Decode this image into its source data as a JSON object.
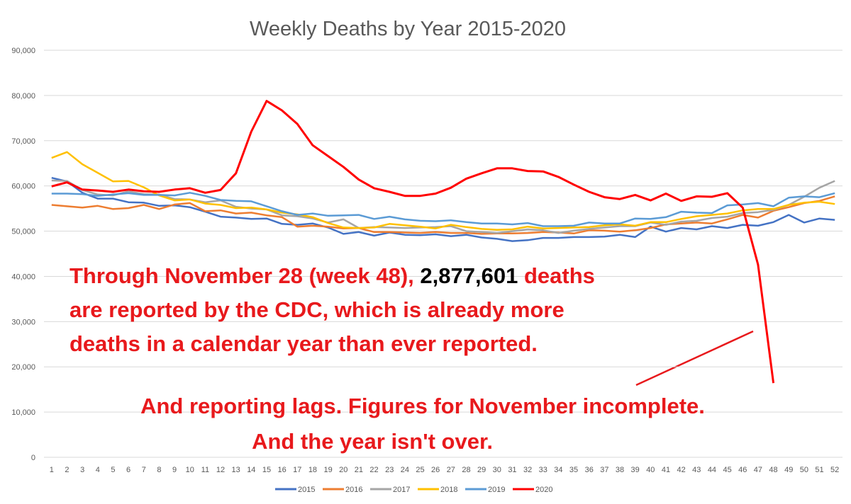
{
  "chart_data": {
    "type": "line",
    "title": "Weekly Deaths by Year 2015-2020",
    "categories": [
      1,
      2,
      3,
      4,
      5,
      6,
      7,
      8,
      9,
      10,
      11,
      12,
      13,
      14,
      15,
      16,
      17,
      18,
      19,
      20,
      21,
      22,
      23,
      24,
      25,
      26,
      27,
      28,
      29,
      30,
      31,
      32,
      33,
      34,
      35,
      36,
      37,
      38,
      39,
      40,
      41,
      42,
      43,
      44,
      45,
      46,
      47,
      48,
      49,
      50,
      51,
      52
    ],
    "ylim": [
      0,
      90000
    ],
    "yticks": [
      0,
      {
        "value": 10000,
        "label": "10,000"
      },
      {
        "value": 20000,
        "label": "20,000"
      },
      {
        "value": 30000,
        "label": "30,000"
      },
      {
        "value": 40000,
        "label": "40,000"
      },
      {
        "value": 50000,
        "label": "50,000"
      },
      {
        "value": 60000,
        "label": "60,000"
      },
      {
        "value": 70000,
        "label": "70,000"
      },
      {
        "value": 80000,
        "label": "80,000"
      },
      {
        "value": 90000,
        "label": "90,000"
      }
    ],
    "grid": true,
    "legend": "bottom",
    "series": [
      {
        "name": "2015",
        "color": "#4472c4",
        "values": [
          61800,
          61000,
          58500,
          57200,
          57200,
          56400,
          56300,
          55600,
          55700,
          55300,
          54300,
          53200,
          53000,
          52700,
          52800,
          51600,
          51400,
          51700,
          50800,
          49400,
          49800,
          49000,
          49700,
          49200,
          49100,
          49300,
          48900,
          49200,
          48600,
          48300,
          47800,
          48000,
          48500,
          48500,
          48700,
          48700,
          48800,
          49200,
          48700,
          51000,
          49900,
          50700,
          50400,
          51100,
          50700,
          51400,
          51200,
          52000,
          53600,
          51900,
          52800,
          52500
        ]
      },
      {
        "name": "2016",
        "color": "#ed7d31",
        "values": [
          55800,
          55500,
          55200,
          55600,
          54900,
          55100,
          55800,
          54900,
          55900,
          56200,
          54400,
          54600,
          53900,
          54100,
          53500,
          53100,
          51000,
          51200,
          51000,
          50600,
          50700,
          49800,
          49800,
          49700,
          49600,
          49800,
          49600,
          49600,
          49400,
          49500,
          49500,
          49600,
          49800,
          49700,
          49500,
          50200,
          50100,
          49900,
          50200,
          50700,
          51500,
          51700,
          51900,
          51700,
          52600,
          53600,
          53000,
          54500,
          55300,
          56200,
          56700,
          57700
        ]
      },
      {
        "name": "2017",
        "color": "#a5a5a5",
        "values": [
          61200,
          61100,
          59100,
          58100,
          57900,
          58800,
          58200,
          58100,
          57100,
          57000,
          56400,
          56800,
          55400,
          55000,
          54800,
          53500,
          53300,
          52800,
          51900,
          52600,
          50700,
          50900,
          50800,
          50700,
          50800,
          50900,
          51100,
          50000,
          49800,
          49600,
          50000,
          50400,
          50200,
          49600,
          50100,
          50500,
          50800,
          51100,
          51100,
          51900,
          51400,
          52100,
          52300,
          52900,
          53200,
          54000,
          54200,
          54700,
          55800,
          57600,
          59600,
          61100
        ]
      },
      {
        "name": "2018",
        "color": "#ffc000",
        "values": [
          66200,
          67500,
          64800,
          62900,
          61000,
          61100,
          59700,
          57900,
          56800,
          57000,
          56100,
          55800,
          55100,
          55200,
          54800,
          54100,
          53700,
          53100,
          51800,
          50800,
          50700,
          50800,
          51600,
          51300,
          51000,
          50600,
          51400,
          50900,
          50500,
          50300,
          50400,
          51000,
          50600,
          50700,
          50800,
          50900,
          51300,
          51500,
          51200,
          52000,
          52000,
          52700,
          53300,
          53600,
          53900,
          54600,
          54900,
          54900,
          55800,
          56300,
          56500,
          56000
        ]
      },
      {
        "name": "2019",
        "color": "#5b9bd5",
        "values": [
          58300,
          58300,
          58200,
          57800,
          58100,
          58400,
          58000,
          58000,
          57900,
          58500,
          57800,
          56900,
          56700,
          56600,
          55500,
          54400,
          53600,
          53900,
          53400,
          53500,
          53600,
          52700,
          53200,
          52600,
          52300,
          52200,
          52400,
          52000,
          51700,
          51700,
          51500,
          51800,
          51100,
          51100,
          51200,
          51900,
          51700,
          51700,
          52800,
          52700,
          53100,
          54300,
          54100,
          54000,
          55700,
          55900,
          56200,
          55500,
          57400,
          57700,
          57500,
          58400
        ]
      },
      {
        "name": "2020",
        "color": "#ff0000",
        "values": [
          59900,
          60800,
          59200,
          59000,
          58700,
          59200,
          58800,
          58700,
          59200,
          59500,
          58500,
          59100,
          62800,
          72000,
          78800,
          76700,
          73700,
          69000,
          66600,
          64200,
          61400,
          59500,
          58700,
          57800,
          57800,
          58300,
          59600,
          61600,
          62800,
          63900,
          63900,
          63300,
          63200,
          62000,
          60300,
          58700,
          57500,
          57100,
          58000,
          56800,
          58300,
          56700,
          57700,
          57600,
          58400,
          55200,
          42600,
          16400,
          null,
          null,
          null,
          null
        ]
      }
    ],
    "annotations": [
      {
        "lines": [
          [
            "Through November 28 (week 48), ",
            "2,877,601",
            " deaths"
          ],
          [
            "are reported by the CDC, which is already more"
          ],
          [
            "deaths in a calendar year than ever reported."
          ]
        ]
      },
      {
        "lines": [
          [
            "And reporting lags. Figures for November incomplete."
          ],
          [
            "And the year isn't over."
          ]
        ]
      }
    ]
  }
}
